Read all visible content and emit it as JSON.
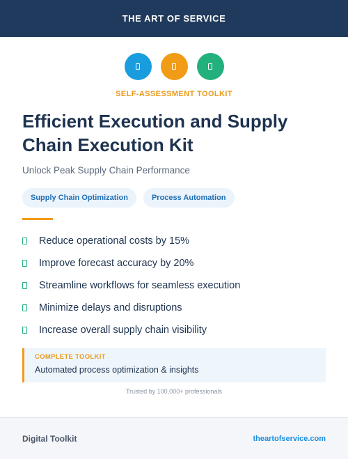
{
  "header": {
    "brand": "THE ART OF SERVICE"
  },
  "icons": [
    {
      "name": "document-icon",
      "color": "#1a9ddf"
    },
    {
      "name": "document-icon",
      "color": "#f29b16"
    },
    {
      "name": "document-icon",
      "color": "#22b07d"
    }
  ],
  "kicker": "SELF-ASSESSMENT TOOLKIT",
  "title": "Efficient Execution and Supply Chain Execution Kit",
  "subtitle": "Unlock Peak Supply Chain Performance",
  "tags": [
    "Supply Chain Optimization",
    "Process Automation"
  ],
  "benefits": [
    "Reduce operational costs by 15%",
    "Improve forecast accuracy by 20%",
    "Streamline workflows for seamless execution",
    "Minimize delays and disruptions",
    "Increase overall supply chain visibility"
  ],
  "callout": {
    "label": "COMPLETE TOOLKIT",
    "text": "Automated process optimization & insights"
  },
  "trusted": "Trusted by 100,000+ professionals",
  "footer": {
    "label": "Digital Toolkit",
    "link": "theartofservice.com"
  },
  "colors": {
    "header_bg": "#1f3a5c",
    "accent_orange": "#f29b16",
    "accent_blue": "#1a9ddf",
    "accent_green": "#22b07d"
  }
}
